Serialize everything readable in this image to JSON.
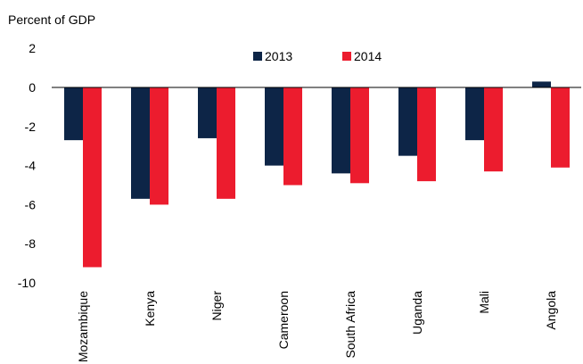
{
  "chart_data": {
    "type": "bar",
    "ylabel": "Percent of GDP",
    "categories": [
      "Mozambique",
      "Kenya",
      "Niger",
      "Cameroon",
      "South Africa",
      "Uganda",
      "Mali",
      "Angola"
    ],
    "series": [
      {
        "name": "2013",
        "color": "#0d2547",
        "values": [
          -2.7,
          -5.7,
          -2.6,
          -4.0,
          -4.4,
          -3.5,
          -2.7,
          0.3
        ]
      },
      {
        "name": "2014",
        "color": "#ec1c2e",
        "values": [
          -9.2,
          -6.0,
          -5.7,
          -5.0,
          -4.9,
          -4.8,
          -4.3,
          -4.1
        ]
      }
    ],
    "ylim": [
      -10,
      2
    ],
    "yticks": [
      2,
      0,
      -2,
      -4,
      -6,
      -8,
      -10
    ],
    "legend_position": "top-center",
    "grid": false
  }
}
